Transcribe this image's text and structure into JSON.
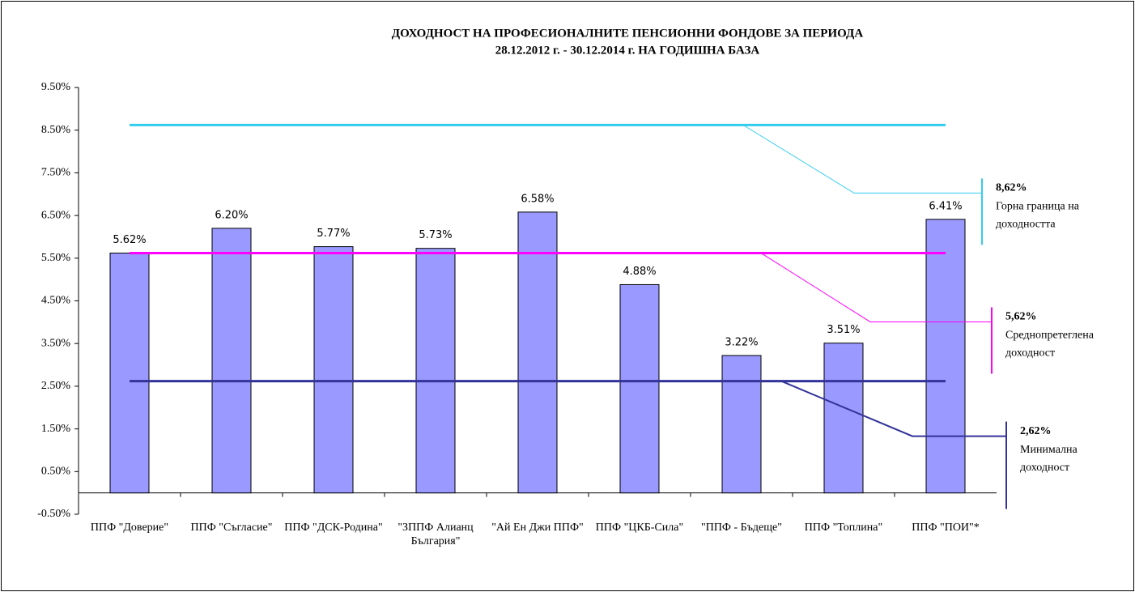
{
  "chart_data": {
    "type": "bar",
    "title": "ДОХОДНОСТ НА ПРОФЕСИОНАЛНИТЕ ПЕНСИОННИ ФОНДОВЕ ЗА ПЕРИОДА",
    "subtitle": "28.12.2012 г. - 30.12.2014 г. НА ГОДИШНА БАЗА",
    "categories": [
      "ППФ \"Доверие\"",
      "ППФ \"Съгласие\"",
      "ППФ \"ДСК-Родина\"",
      "\"ЗППФ Алианц България\"",
      "\"Ай Ен Джи ППФ\"",
      "ППФ \"ЦКБ-Сила\"",
      "\"ППФ - Бъдеще\"",
      "ППФ \"Топлина\"",
      "ППФ \"ПОИ\"*"
    ],
    "values": [
      5.62,
      6.2,
      5.77,
      5.73,
      6.58,
      4.88,
      3.22,
      3.51,
      6.41
    ],
    "value_labels": [
      "5.62%",
      "6.20%",
      "5.77%",
      "5.73%",
      "6.58%",
      "4.88%",
      "3.22%",
      "3.51%",
      "6.41%"
    ],
    "color": "#9999ff",
    "ylim": [
      -0.5,
      9.5
    ],
    "yticks": [
      {
        "value": -0.5,
        "label": "-0.50%"
      },
      {
        "value": 0.5,
        "label": "0.50%"
      },
      {
        "value": 1.5,
        "label": "1.50%"
      },
      {
        "value": 2.5,
        "label": "2.50%"
      },
      {
        "value": 3.5,
        "label": "3.50%"
      },
      {
        "value": 4.5,
        "label": "4.50%"
      },
      {
        "value": 5.5,
        "label": "5.50%"
      },
      {
        "value": 6.5,
        "label": "6.50%"
      },
      {
        "value": 7.5,
        "label": "7.50%"
      },
      {
        "value": 8.5,
        "label": "8.50%"
      },
      {
        "value": 9.5,
        "label": "9.50%"
      }
    ],
    "reference_lines": [
      {
        "value": 8.62,
        "label": "8,62%",
        "text": [
          "Горна граница на",
          "доходността"
        ],
        "color": "#33ccee"
      },
      {
        "value": 5.62,
        "label": "5,62%",
        "text": [
          "Среднопретеглена",
          "доходност"
        ],
        "color": "#ff00ff"
      },
      {
        "value": 2.62,
        "label": "2,62%",
        "text": [
          "Минимална",
          "доходност"
        ],
        "color": "#333399"
      }
    ]
  }
}
